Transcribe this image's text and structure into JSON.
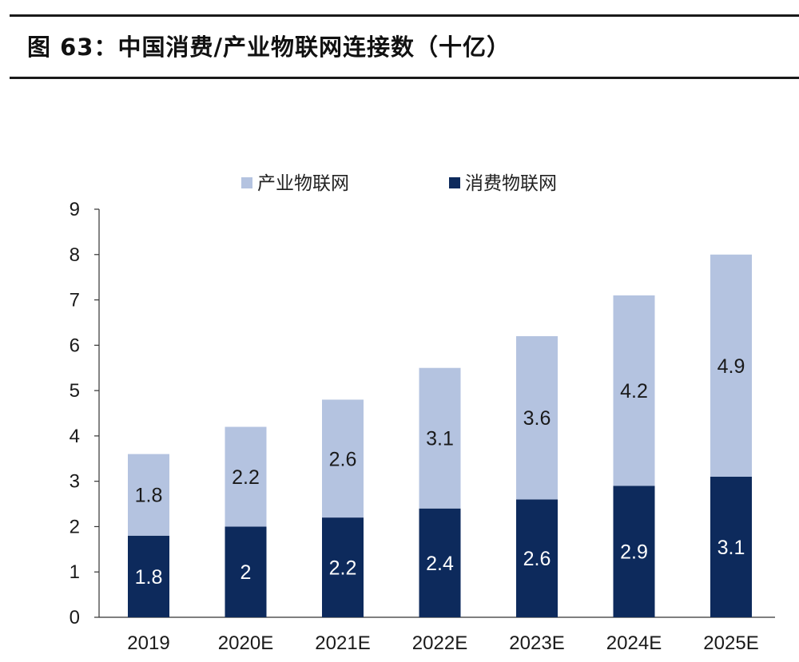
{
  "figure": {
    "title": "图 63：中国消费/产业物联网连接数（十亿）"
  },
  "chart_data": {
    "type": "bar",
    "stacked": true,
    "categories": [
      "2019",
      "2020E",
      "2021E",
      "2022E",
      "2023E",
      "2024E",
      "2025E"
    ],
    "series": [
      {
        "name": "消费物联网",
        "values": [
          1.8,
          2,
          2.2,
          2.4,
          2.6,
          2.9,
          3.1
        ],
        "color": "#0d2a5c",
        "label_color": "#ffffff"
      },
      {
        "name": "产业物联网",
        "values": [
          1.8,
          2.2,
          2.6,
          3.1,
          3.6,
          4.2,
          4.9
        ],
        "color": "#b4c3e0",
        "label_color": "#1a1a1a"
      }
    ],
    "legend_order": [
      "产业物联网",
      "消费物联网"
    ],
    "legend_position": "top",
    "ylim": [
      0,
      9
    ],
    "yticks": [
      0,
      1,
      2,
      3,
      4,
      5,
      6,
      7,
      8,
      9
    ],
    "grid": false,
    "xlabel": "",
    "ylabel": ""
  }
}
